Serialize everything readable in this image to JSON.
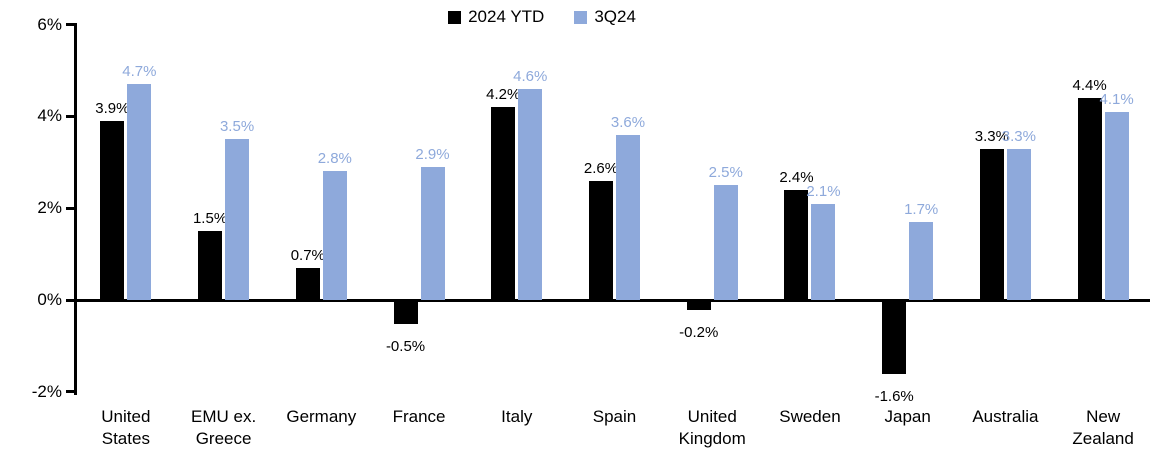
{
  "chart_data": {
    "type": "bar",
    "title": "",
    "xlabel": "",
    "ylabel": "",
    "categories": [
      "United\nStates",
      "EMU ex.\nGreece",
      "Germany",
      "France",
      "Italy",
      "Spain",
      "United\nKingdom",
      "Sweden",
      "Japan",
      "Australia",
      "New\nZealand"
    ],
    "series": [
      {
        "name": "2024 YTD",
        "color": "#000000",
        "values": [
          3.9,
          1.5,
          0.7,
          -0.5,
          4.2,
          2.6,
          -0.2,
          2.4,
          -1.6,
          3.3,
          4.4
        ],
        "labels": [
          "3.9%",
          "1.5%",
          "0.7%",
          "-0.5%",
          "4.2%",
          "2.6%",
          "-0.2%",
          "2.4%",
          "-1.6%",
          "3.3%",
          "4.4%"
        ]
      },
      {
        "name": "3Q24",
        "color": "#8EA9DB",
        "values": [
          4.7,
          3.5,
          2.8,
          2.9,
          4.6,
          3.6,
          2.5,
          2.1,
          1.7,
          3.3,
          4.1
        ],
        "labels": [
          "4.7%",
          "3.5%",
          "2.8%",
          "2.9%",
          "4.6%",
          "3.6%",
          "2.5%",
          "2.1%",
          "1.7%",
          "3.3%",
          "4.1%"
        ]
      }
    ],
    "legend": [
      {
        "label": "2024 YTD",
        "color": "#000000"
      },
      {
        "label": "3Q24",
        "color": "#8EA9DB"
      }
    ],
    "legend_position": "top-center",
    "ylim": [
      -2,
      6
    ],
    "yticks": [
      {
        "value": 6,
        "label": "6%"
      },
      {
        "value": 4,
        "label": "4%"
      },
      {
        "value": 2,
        "label": "2%"
      },
      {
        "value": 0,
        "label": "0%"
      },
      {
        "value": -2,
        "label": "-2%"
      }
    ],
    "grid": false,
    "axis_color": "#000000",
    "background": "#FFFFFF"
  }
}
